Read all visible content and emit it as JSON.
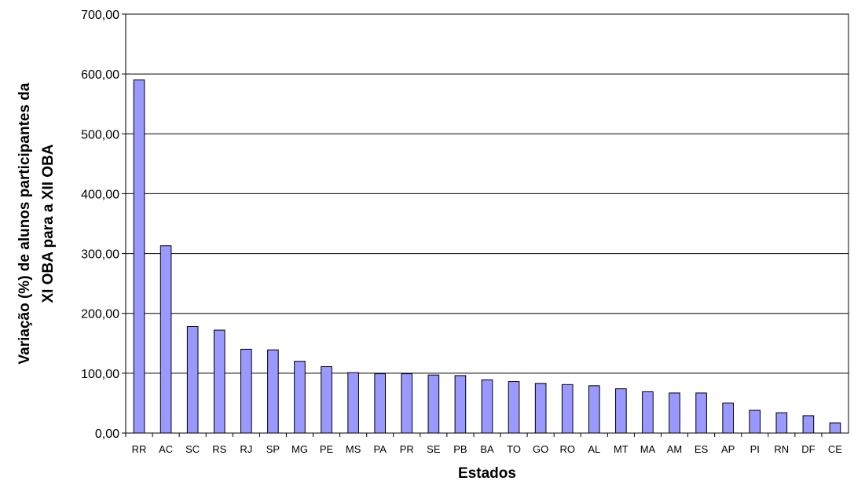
{
  "colors": {
    "bar_fill": "#9999ff",
    "bar_stroke": "#000000",
    "grid": "#000000",
    "background": "#ffffff"
  },
  "chart_data": {
    "type": "bar",
    "categories": [
      "RR",
      "AC",
      "SC",
      "RS",
      "RJ",
      "SP",
      "MG",
      "PE",
      "MS",
      "PA",
      "PR",
      "SE",
      "PB",
      "BA",
      "TO",
      "GO",
      "RO",
      "AL",
      "MT",
      "MA",
      "AM",
      "ES",
      "AP",
      "PI",
      "RN",
      "DF",
      "CE"
    ],
    "values": [
      590,
      313,
      178,
      172,
      140,
      139,
      120,
      111,
      101,
      99,
      99,
      97,
      96,
      89,
      86,
      83,
      81,
      79,
      74,
      69,
      67,
      67,
      50,
      38,
      34,
      29,
      17
    ],
    "title": "",
    "xlabel": "Estados",
    "ylabel_lines": [
      "Variação (%) de alunos participantes da",
      "XI OBA para a XII OBA"
    ],
    "ylim": [
      0,
      700
    ],
    "yticks": [
      0,
      100,
      200,
      300,
      400,
      500,
      600,
      700
    ],
    "ytick_labels": [
      "0,00",
      "100,00",
      "200,00",
      "300,00",
      "400,00",
      "500,00",
      "600,00",
      "700,00"
    ],
    "grid": true,
    "legend": false
  }
}
